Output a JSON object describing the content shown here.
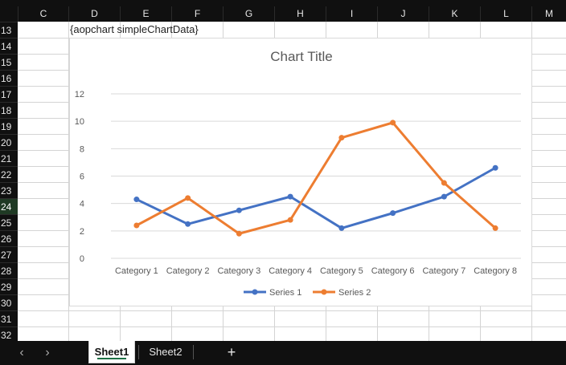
{
  "columns": [
    "C",
    "D",
    "E",
    "F",
    "G",
    "H",
    "I",
    "J",
    "K",
    "L",
    "M"
  ],
  "rows": [
    "13",
    "14",
    "15",
    "16",
    "17",
    "18",
    "19",
    "20",
    "21",
    "22",
    "23",
    "24",
    "25",
    "26",
    "27",
    "28",
    "29",
    "30",
    "31",
    "32"
  ],
  "selected_row": "24",
  "cell_text": "{aopchart simpleChartData}",
  "sheet_tabs": [
    {
      "label": "Sheet1",
      "active": true
    },
    {
      "label": "Sheet2",
      "active": false
    }
  ],
  "nav": {
    "prev": "‹",
    "next": "›",
    "add": "+"
  },
  "chart_data": {
    "type": "line",
    "title": "Chart Title",
    "categories": [
      "Category 1",
      "Category 2",
      "Category 3",
      "Category 4",
      "Category 5",
      "Category 6",
      "Category 7",
      "Category 8"
    ],
    "series": [
      {
        "name": "Series 1",
        "color": "#4472c4",
        "values": [
          4.3,
          2.5,
          3.5,
          4.5,
          2.2,
          3.3,
          4.5,
          6.6
        ]
      },
      {
        "name": "Series 2",
        "color": "#ed7d31",
        "values": [
          2.4,
          4.4,
          1.8,
          2.8,
          8.8,
          9.9,
          5.5,
          2.2
        ]
      }
    ],
    "ylim": [
      0,
      12
    ],
    "yticks": [
      "0",
      "2",
      "4",
      "6",
      "8",
      "10",
      "12"
    ],
    "grid": true,
    "legend": "bottom"
  }
}
